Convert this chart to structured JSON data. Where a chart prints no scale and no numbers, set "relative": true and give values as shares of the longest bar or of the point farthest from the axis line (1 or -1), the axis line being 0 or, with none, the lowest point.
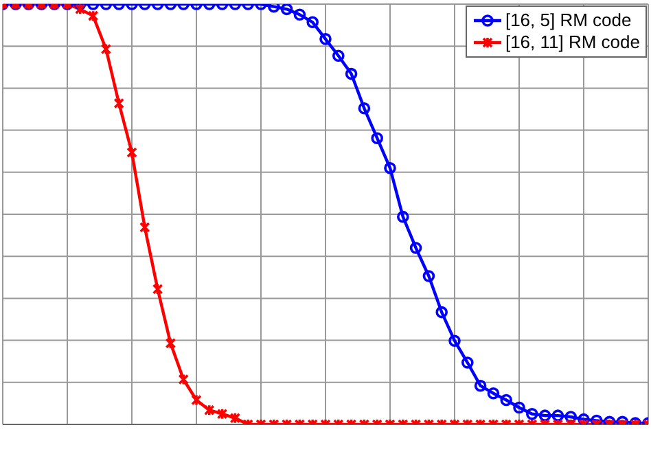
{
  "chart_data": {
    "type": "line",
    "relative": true,
    "grid": true,
    "legend": "top right",
    "line_style": "solid",
    "categories": [
      null,
      null,
      null,
      null,
      null,
      null,
      null,
      null,
      null,
      null,
      null,
      null,
      null,
      null,
      null,
      null,
      null,
      null,
      null,
      null,
      null,
      null,
      null,
      null,
      null,
      null,
      null,
      null,
      null,
      null,
      null,
      null,
      null,
      null,
      null,
      null,
      null,
      null,
      null,
      null,
      null,
      null,
      null,
      null,
      null,
      null,
      null,
      null,
      null,
      null,
      null
    ],
    "series": [
      {
        "name": "[16, 5] RM code",
        "color": "#0000ff",
        "marker": "circle",
        "values": [
          1,
          1,
          1,
          1,
          1,
          1,
          1,
          1,
          1,
          1,
          1,
          1,
          1,
          1,
          1,
          1,
          1,
          1,
          1,
          1,
          1,
          0.994,
          0.988,
          0.975,
          0.957,
          0.917,
          0.877,
          0.834,
          0.752,
          0.681,
          0.61,
          0.494,
          0.42,
          0.353,
          0.267,
          0.199,
          0.147,
          0.092,
          0.074,
          0.058,
          0.04,
          0.025,
          0.021,
          0.021,
          0.018,
          0.012,
          0.009,
          0.006,
          0.006,
          0.003,
          0.003
        ]
      },
      {
        "name": "[16, 11] RM code",
        "color": "#ff0000",
        "marker": "cross",
        "values": [
          1,
          1,
          1,
          1,
          1,
          1,
          0.988,
          0.972,
          0.893,
          0.764,
          0.647,
          0.469,
          0.322,
          0.193,
          0.107,
          0.058,
          0.034,
          0.025,
          0.015,
          0,
          0,
          0,
          0,
          0,
          0,
          0,
          0,
          0,
          0,
          0,
          0,
          0,
          0,
          0,
          0,
          0,
          0,
          0,
          0,
          0,
          0,
          0,
          0,
          0,
          0,
          0,
          0,
          0,
          0,
          0,
          0
        ]
      }
    ]
  }
}
